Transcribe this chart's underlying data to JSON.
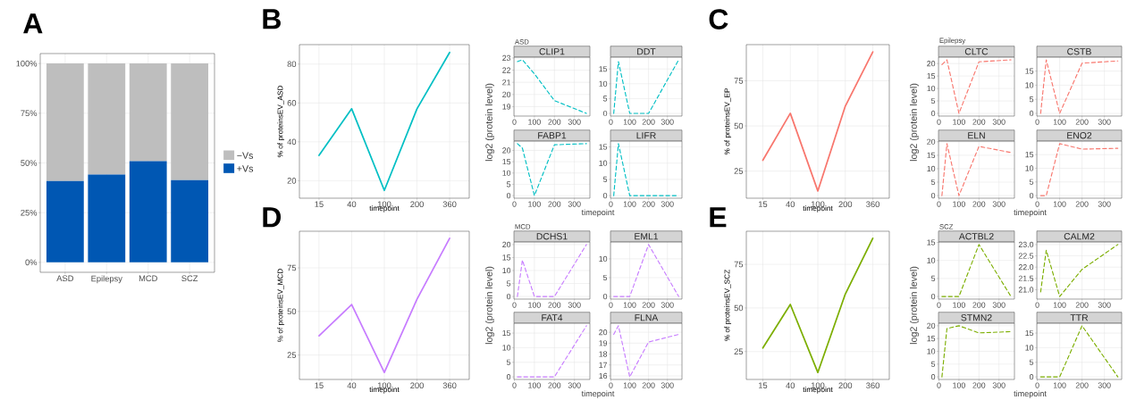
{
  "chart_data": [
    {
      "type": "bar",
      "title": "A",
      "categories": [
        "ASD",
        "Epilepsy",
        "MCD",
        "SCZ"
      ],
      "stacked": true,
      "legend": "right",
      "grid": true,
      "ylim": [
        -5,
        105
      ],
      "yticks": [
        {
          "value": 0,
          "label": "0%"
        },
        {
          "value": 25,
          "label": "25%"
        },
        {
          "value": 50,
          "label": "50%"
        },
        {
          "value": 75,
          "label": "75%"
        },
        {
          "value": 100,
          "label": "100%"
        }
      ],
      "series": [
        {
          "name": "+Vs",
          "color": "#0057b3",
          "values": [
            40.9,
            44.2,
            50.9,
            41.3
          ]
        },
        {
          "name": "−Vs",
          "color": "#bebebe",
          "values": [
            59.1,
            55.8,
            49.1,
            58.7
          ]
        }
      ]
    },
    {
      "type": "line",
      "title": "B",
      "categories": [
        "15",
        "40",
        "100",
        "200",
        "360"
      ],
      "values": [
        33,
        57,
        15,
        57,
        86
      ],
      "color": "#00bfc4",
      "xlabel": "timepoint",
      "ylabel": "% of proteinsEV_ASD",
      "ylim": [
        11,
        90
      ],
      "yticks": [
        20,
        40,
        60,
        80
      ],
      "grid": true
    },
    {
      "type": "line",
      "title": "CLIP1",
      "subtitle": "ASD",
      "ylabel": "log2 (protein level)",
      "x": [
        15,
        40,
        100,
        200,
        360
      ],
      "values": [
        22.7,
        22.85,
        21.7,
        19.5,
        18.45
      ],
      "color": "#00bfc4",
      "line_style": "dashed",
      "grid": true,
      "xlim": [
        -2.25,
        377.25
      ],
      "xticks": [
        0,
        100,
        200,
        300
      ],
      "ylim": [
        18.23,
        23.07
      ],
      "yticks": [
        19,
        20,
        21,
        22,
        23
      ]
    },
    {
      "type": "line",
      "title": "DDT",
      "x": [
        15,
        40,
        100,
        200,
        360
      ],
      "values": [
        0,
        17.5,
        0,
        0,
        18.1
      ],
      "color": "#00bfc4",
      "line_style": "dashed",
      "grid": true,
      "xlim": [
        -2.25,
        377.25
      ],
      "xticks": [
        0,
        100,
        200,
        300
      ],
      "ylim": [
        -0.9,
        19
      ],
      "yticks": [
        0,
        5,
        10,
        15
      ]
    },
    {
      "type": "line",
      "title": "FABP1",
      "xlabel": "timepoint",
      "x": [
        15,
        40,
        100,
        200,
        360
      ],
      "values": [
        23,
        21,
        0,
        22.5,
        23
      ],
      "color": "#00bfc4",
      "line_style": "dashed",
      "grid": true,
      "xlim": [
        -2.25,
        377.25
      ],
      "xticks": [
        0,
        100,
        200,
        300
      ],
      "ylim": [
        -1.15,
        24.15
      ],
      "yticks": [
        0,
        5,
        10,
        15,
        20
      ]
    },
    {
      "type": "line",
      "title": "LIFR",
      "x": [
        15,
        40,
        100,
        200,
        360
      ],
      "values": [
        0,
        16,
        0,
        0,
        0
      ],
      "color": "#00bfc4",
      "line_style": "dashed",
      "grid": true,
      "xlim": [
        -2.25,
        377.25
      ],
      "xticks": [
        0,
        100,
        200,
        300
      ],
      "ylim": [
        -0.8,
        16.8
      ],
      "yticks": [
        0,
        5,
        10,
        15
      ]
    },
    {
      "type": "line",
      "title": "C",
      "categories": [
        "15",
        "40",
        "100",
        "200",
        "360"
      ],
      "values": [
        31,
        57,
        14,
        61,
        91
      ],
      "color": "#f8766d",
      "xlabel": "timepoint",
      "ylabel": "% of proteinsEV_EP",
      "ylim": [
        10,
        95
      ],
      "yticks": [
        25,
        50,
        75
      ],
      "grid": true
    },
    {
      "type": "line",
      "title": "CLTC",
      "subtitle": "Epilepsy",
      "ylabel": "log2 (protein level)",
      "x": [
        15,
        40,
        100,
        200,
        360
      ],
      "values": [
        19.6,
        21.5,
        0,
        20.7,
        21.5
      ],
      "color": "#f8766d",
      "line_style": "dashed",
      "grid": true,
      "xlim": [
        -2.25,
        377.25
      ],
      "xticks": [
        0,
        100,
        200,
        300
      ],
      "ylim": [
        -1.08,
        22.58
      ],
      "yticks": [
        0,
        5,
        10,
        15,
        20
      ]
    },
    {
      "type": "line",
      "title": "CSTB",
      "x": [
        15,
        40,
        100,
        200,
        360
      ],
      "values": [
        0,
        19,
        0,
        17.8,
        18.6
      ],
      "color": "#f8766d",
      "line_style": "dashed",
      "grid": true,
      "xlim": [
        -2.25,
        377.25
      ],
      "xticks": [
        0,
        100,
        200,
        300
      ],
      "ylim": [
        -0.95,
        19.95
      ],
      "yticks": [
        0,
        5,
        10,
        15
      ]
    },
    {
      "type": "line",
      "title": "ELN",
      "xlabel": "timepoint",
      "x": [
        15,
        40,
        100,
        200,
        360
      ],
      "values": [
        0,
        19.3,
        0,
        18.3,
        16
      ],
      "color": "#f8766d",
      "line_style": "dashed",
      "grid": true,
      "xlim": [
        -2.25,
        377.25
      ],
      "xticks": [
        0,
        100,
        200,
        300
      ],
      "ylim": [
        -0.97,
        20.27
      ],
      "yticks": [
        0,
        5,
        10,
        15,
        20
      ]
    },
    {
      "type": "line",
      "title": "ENO2",
      "x": [
        15,
        40,
        100,
        200,
        360
      ],
      "values": [
        0,
        0,
        19,
        17,
        17.3
      ],
      "color": "#f8766d",
      "line_style": "dashed",
      "grid": true,
      "xlim": [
        -2.25,
        377.25
      ],
      "xticks": [
        0,
        100,
        200,
        300
      ],
      "ylim": [
        -0.95,
        19.95
      ],
      "yticks": [
        0,
        5,
        10,
        15
      ]
    },
    {
      "type": "line",
      "title": "D",
      "categories": [
        "15",
        "40",
        "100",
        "200",
        "360"
      ],
      "values": [
        36,
        54,
        15,
        57,
        92
      ],
      "color": "#c77cff",
      "xlabel": "timepoint",
      "ylabel": "% of proteinsEV_MCD",
      "ylim": [
        11,
        96
      ],
      "yticks": [
        25,
        50,
        75
      ],
      "grid": true
    },
    {
      "type": "line",
      "title": "DCHS1",
      "subtitle": "MCD",
      "ylabel": "log2 (protein level)",
      "x": [
        15,
        40,
        100,
        200,
        360
      ],
      "values": [
        0,
        14,
        0,
        0,
        20
      ],
      "color": "#c77cff",
      "line_style": "dashed",
      "grid": true,
      "xlim": [
        -2.25,
        377.25
      ],
      "xticks": [
        0,
        100,
        200,
        300
      ],
      "ylim": [
        -1,
        21
      ],
      "yticks": [
        0,
        5,
        10,
        15,
        20
      ]
    },
    {
      "type": "line",
      "title": "EML1",
      "x": [
        15,
        40,
        100,
        200,
        360
      ],
      "values": [
        0,
        0,
        0,
        13.8,
        0
      ],
      "color": "#c77cff",
      "line_style": "dashed",
      "grid": true,
      "xlim": [
        -2.25,
        377.25
      ],
      "xticks": [
        0,
        100,
        200,
        300
      ],
      "ylim": [
        -0.69,
        14.49
      ],
      "yticks": [
        0,
        5,
        10
      ]
    },
    {
      "type": "line",
      "title": "FAT4",
      "xlabel": "timepoint",
      "x": [
        15,
        40,
        100,
        200,
        360
      ],
      "values": [
        0,
        0,
        0,
        0,
        17.5
      ],
      "color": "#c77cff",
      "line_style": "dashed",
      "grid": true,
      "xlim": [
        -2.25,
        377.25
      ],
      "xticks": [
        0,
        100,
        200,
        300
      ],
      "ylim": [
        -0.875,
        18.375
      ],
      "yticks": [
        0,
        5,
        10,
        15
      ]
    },
    {
      "type": "line",
      "title": "FLNA",
      "x": [
        15,
        40,
        100,
        200,
        360
      ],
      "values": [
        19.8,
        20.6,
        15.9,
        19.1,
        19.8
      ],
      "color": "#c77cff",
      "line_style": "dashed",
      "grid": true,
      "xlim": [
        -2.25,
        377.25
      ],
      "xticks": [
        0,
        100,
        200,
        300
      ],
      "ylim": [
        15.67,
        20.83
      ],
      "yticks": [
        16,
        17,
        18,
        19,
        20
      ]
    },
    {
      "type": "line",
      "title": "E",
      "categories": [
        "15",
        "40",
        "100",
        "200",
        "360"
      ],
      "values": [
        27,
        52,
        13,
        58,
        90
      ],
      "color": "#7cae00",
      "xlabel": "timepoint",
      "ylabel": "% of proteinsEV_SCZ",
      "ylim": [
        9,
        94
      ],
      "yticks": [
        25,
        50,
        75
      ],
      "grid": true
    },
    {
      "type": "line",
      "title": "ACTBL2",
      "subtitle": "SCZ",
      "ylabel": "log2 (protein level)",
      "x": [
        15,
        40,
        100,
        200,
        360
      ],
      "values": [
        0,
        0,
        0,
        14.4,
        0
      ],
      "color": "#7cae00",
      "line_style": "dashed",
      "grid": true,
      "xlim": [
        -2.25,
        377.25
      ],
      "xticks": [
        0,
        100,
        200,
        300
      ],
      "ylim": [
        -0.72,
        15.12
      ],
      "yticks": [
        0,
        5,
        10,
        15
      ]
    },
    {
      "type": "line",
      "title": "CALM2",
      "x": [
        15,
        40,
        100,
        200,
        360
      ],
      "values": [
        20.9,
        22.75,
        20.7,
        21.9,
        23
      ],
      "color": "#7cae00",
      "line_style": "dashed",
      "grid": true,
      "xlim": [
        -2.25,
        377.25
      ],
      "xticks": [
        0,
        100,
        200,
        300
      ],
      "ylim": [
        20.585,
        23.115
      ],
      "yticks": [
        {
          "value": 21,
          "label": "21.0"
        },
        {
          "value": 21.5,
          "label": "21.5"
        },
        {
          "value": 22,
          "label": "22.0"
        },
        {
          "value": 22.5,
          "label": "22.5"
        },
        {
          "value": 23,
          "label": "23.0"
        }
      ]
    },
    {
      "type": "line",
      "title": "STMN2",
      "xlabel": "timepoint",
      "x": [
        15,
        40,
        100,
        200,
        360
      ],
      "values": [
        0,
        18.9,
        20,
        17.2,
        17.7
      ],
      "color": "#7cae00",
      "line_style": "dashed",
      "grid": true,
      "xlim": [
        -2.25,
        377.25
      ],
      "xticks": [
        0,
        100,
        200,
        300
      ],
      "ylim": [
        -1,
        21
      ],
      "yticks": [
        0,
        5,
        10,
        15,
        20
      ]
    },
    {
      "type": "line",
      "title": "TTR",
      "x": [
        15,
        40,
        100,
        200,
        360
      ],
      "values": [
        0,
        0,
        0,
        17.5,
        0
      ],
      "color": "#7cae00",
      "line_style": "dashed",
      "grid": true,
      "xlim": [
        -2.25,
        377.25
      ],
      "xticks": [
        0,
        100,
        200,
        300
      ],
      "ylim": [
        -0.875,
        18.375
      ],
      "yticks": [
        0,
        5,
        10,
        15
      ]
    }
  ]
}
